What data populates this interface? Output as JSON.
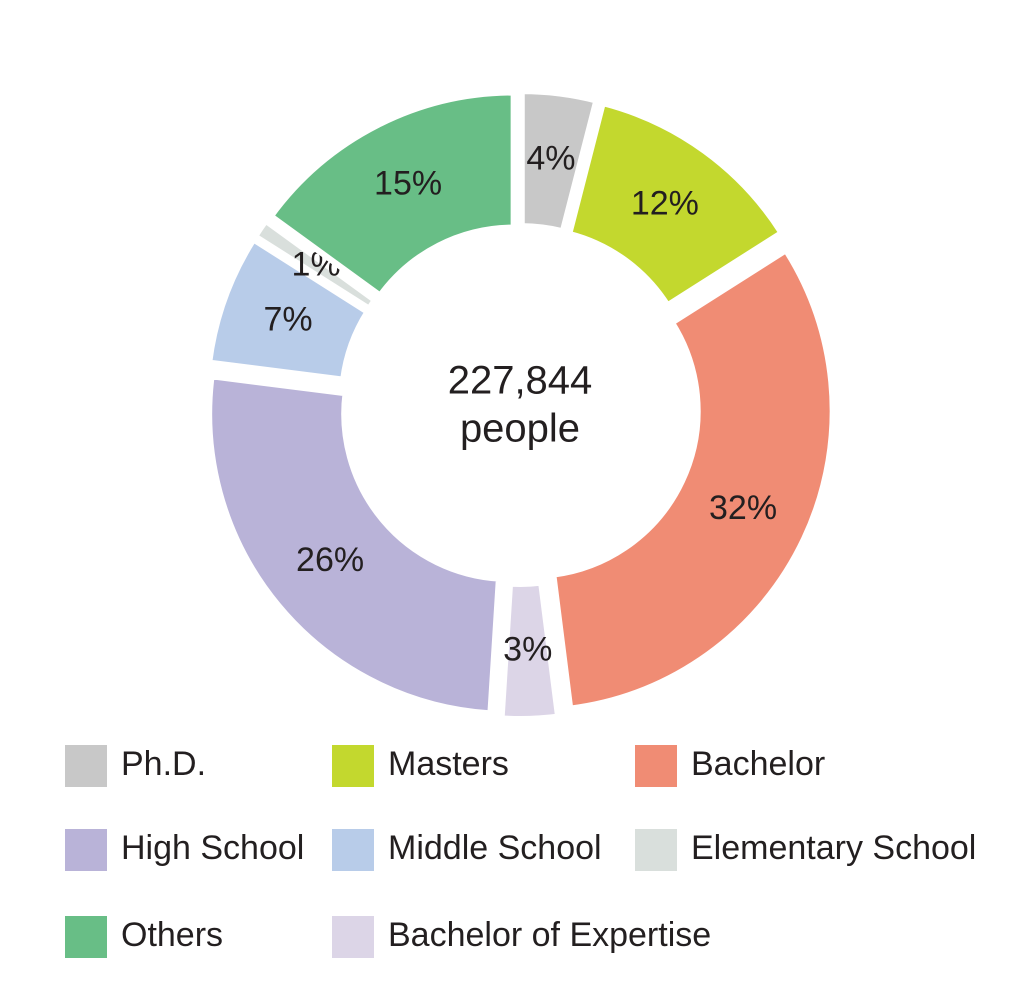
{
  "chart_data": {
    "type": "pie",
    "categories": [
      "Ph.D.",
      "Masters",
      "Bachelor",
      "Bachelor of Expertise",
      "High School",
      "Middle School",
      "Elementary School",
      "Others"
    ],
    "values": [
      4,
      12,
      32,
      3,
      26,
      7,
      1,
      15
    ],
    "value_labels": [
      "4%",
      "12%",
      "32%",
      "3%",
      "26%",
      "7%",
      "1%",
      "15%"
    ],
    "colors": [
      "#c8c8c8",
      "#c3d82e",
      "#f08c74",
      "#dcd5e7",
      "#b9b3d8",
      "#b8cce9",
      "#d9dfdc",
      "#68be86"
    ],
    "center_text": [
      "227,844",
      "people"
    ]
  }
}
